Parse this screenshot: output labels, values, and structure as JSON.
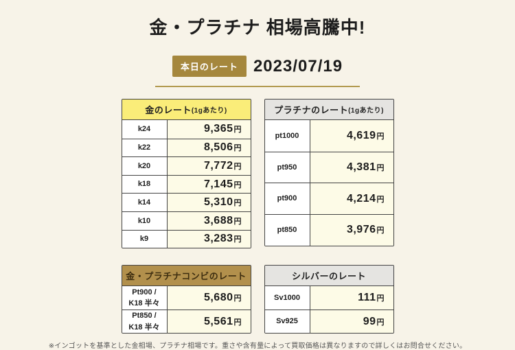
{
  "page": {
    "title": "金・プラチナ 相場高騰中!",
    "date_label": "本日のレート",
    "date": "2023/07/19",
    "footnote": "※インゴットを基準とした金相場、プラチナ相場です。重さや含有量によって買取価格は異なりますので詳しくはお問合せください。"
  },
  "colors": {
    "page_bg": "#F7F3E8",
    "badge_gold": "#A5873D",
    "divider_gold": "#B29A50",
    "header_yellow": "#FAED79",
    "header_gray": "#E5E4E1",
    "header_gold": "#B2904C",
    "value_cell_bg": "#FDFBE7",
    "border": "#434343"
  },
  "tables": {
    "gold": {
      "title": "金のレート",
      "title_note": "(1gあたり)",
      "unit": "円",
      "rows": [
        {
          "label": "k24",
          "value": "9,365"
        },
        {
          "label": "k22",
          "value": "8,506"
        },
        {
          "label": "k20",
          "value": "7,772"
        },
        {
          "label": "k18",
          "value": "7,145"
        },
        {
          "label": "k14",
          "value": "5,310"
        },
        {
          "label": "k10",
          "value": "3,688"
        },
        {
          "label": "k9",
          "value": "3,283"
        }
      ]
    },
    "platinum": {
      "title": "プラチナのレート",
      "title_note": "(1gあたり)",
      "unit": "円",
      "rows": [
        {
          "label": "pt1000",
          "value": "4,619"
        },
        {
          "label": "pt950",
          "value": "4,381"
        },
        {
          "label": "pt900",
          "value": "4,214"
        },
        {
          "label": "pt850",
          "value": "3,976"
        }
      ]
    },
    "combo": {
      "title": "金・プラチナコンビのレート",
      "title_note": "",
      "unit": "円",
      "rows": [
        {
          "label": "Pt900 /\nK18 半々",
          "value": "5,680"
        },
        {
          "label": "Pt850 /\nK18 半々",
          "value": "5,561"
        }
      ]
    },
    "silver": {
      "title": "シルバーのレート",
      "title_note": "",
      "unit": "円",
      "rows": [
        {
          "label": "Sv1000",
          "value": "111"
        },
        {
          "label": "Sv925",
          "value": "99"
        }
      ]
    }
  }
}
